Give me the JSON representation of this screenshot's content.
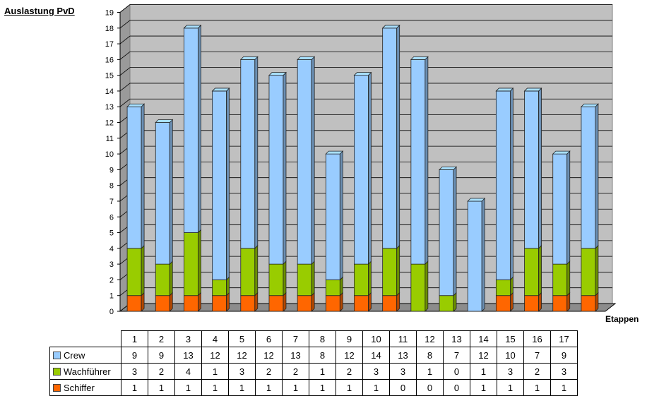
{
  "chart_data": {
    "type": "bar",
    "stacked": true,
    "title": "Auslastung PvD",
    "xlabel": "Etappen",
    "ylabel": "",
    "ylim": [
      0,
      19
    ],
    "yticks": [
      0,
      1,
      2,
      3,
      4,
      5,
      6,
      7,
      8,
      9,
      10,
      11,
      12,
      13,
      14,
      15,
      16,
      17,
      18,
      19
    ],
    "grid": true,
    "categories": [
      "1",
      "2",
      "3",
      "4",
      "5",
      "6",
      "7",
      "8",
      "9",
      "10",
      "11",
      "12",
      "13",
      "14",
      "15",
      "16",
      "17"
    ],
    "series": [
      {
        "name": "Crew",
        "color": "#99ccff",
        "values": [
          9,
          9,
          13,
          12,
          12,
          12,
          13,
          8,
          12,
          14,
          13,
          8,
          7,
          12,
          10,
          7,
          9
        ]
      },
      {
        "name": "Wachführer",
        "color": "#99cc00",
        "values": [
          3,
          2,
          4,
          1,
          3,
          2,
          2,
          1,
          2,
          3,
          3,
          1,
          0,
          1,
          3,
          2,
          3
        ]
      },
      {
        "name": "Schiffer",
        "color": "#ff6600",
        "values": [
          1,
          1,
          1,
          1,
          1,
          1,
          1,
          1,
          1,
          1,
          0,
          0,
          0,
          1,
          1,
          1,
          1
        ]
      }
    ]
  }
}
